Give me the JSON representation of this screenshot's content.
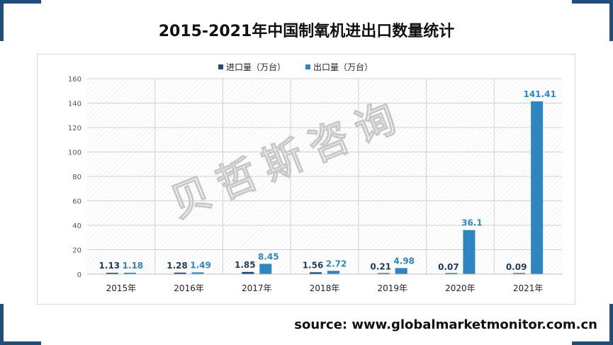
{
  "title": "2015-2021年中国制氧机进出口数量统计",
  "source": "source: www.globalmarketmonitor.com.cn",
  "watermark": "贝哲斯咨询",
  "colors": {
    "import": "#1f4e79",
    "export": "#2e86c1",
    "corner": "#1f4e79"
  },
  "chart_data": {
    "type": "bar",
    "title": "2015-2021年中国制氧机进出口数量统计",
    "xlabel": "",
    "ylabel": "",
    "categories": [
      "2015年",
      "2016年",
      "2017年",
      "2018年",
      "2019年",
      "2020年",
      "2021年"
    ],
    "series": [
      {
        "name": "进口量（万台）",
        "values": [
          1.13,
          1.28,
          1.85,
          1.56,
          0.21,
          0.07,
          0.09
        ]
      },
      {
        "name": "出口量（万台）",
        "values": [
          1.18,
          1.49,
          8.45,
          2.72,
          4.98,
          36.1,
          141.41
        ]
      }
    ],
    "ylim": [
      0,
      160
    ],
    "yticks": [
      0,
      20,
      40,
      60,
      80,
      100,
      120,
      140,
      160
    ],
    "legend": "top-center",
    "grid": true
  }
}
